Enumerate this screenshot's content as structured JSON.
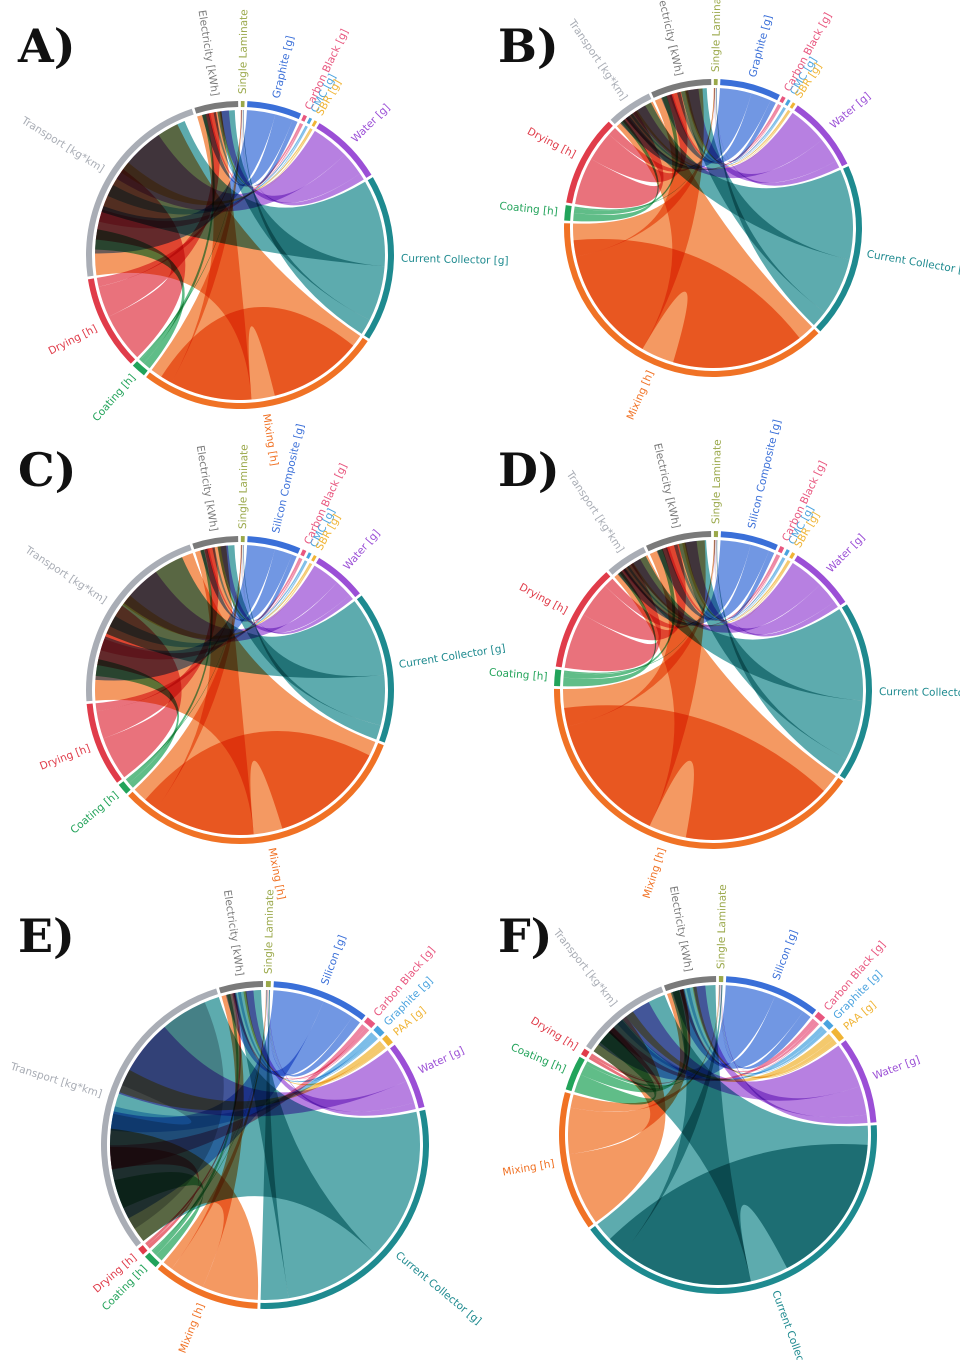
{
  "figure": {
    "panels": [
      {
        "letter": "A)",
        "segments": [
          {
            "label": "Single Laminate",
            "color": "#9aa84a",
            "span": 1.0
          },
          {
            "label": "Graphite [g]",
            "color": "#3a6fd8",
            "span": 15
          },
          {
            "label": "Carbon Black [g]",
            "color": "#e8577f",
            "span": 1.0
          },
          {
            "label": "CMC [g]",
            "color": "#4aa3df",
            "span": 0.8
          },
          {
            "label": "SBR [g]",
            "color": "#f0b435",
            "span": 0.8
          },
          {
            "label": "Water [g]",
            "color": "#9b4fd6",
            "span": 20
          },
          {
            "label": "Current Collector [g]",
            "color": "#1e8a8f",
            "span": 46
          },
          {
            "label": "Mixing [h]",
            "color": "#f07225",
            "span": 68
          },
          {
            "label": "Coating [h]",
            "color": "#22a35a",
            "span": 4
          },
          {
            "label": "Drying [h]",
            "color": "#e03c4a",
            "span": 26
          },
          {
            "label": "Transport [kg*km]",
            "color": "#a9adb5",
            "span": 58
          },
          {
            "label": "Electricity [kWh]",
            "color": "#7a7a7a",
            "span": 12
          }
        ]
      },
      {
        "letter": "B)",
        "segments": [
          {
            "label": "Single Laminate",
            "color": "#9aa84a",
            "span": 1.0
          },
          {
            "label": "Graphite [g]",
            "color": "#3a6fd8",
            "span": 16
          },
          {
            "label": "Carbon Black [g]",
            "color": "#e8577f",
            "span": 1.0
          },
          {
            "label": "CMC [g]",
            "color": "#4aa3df",
            "span": 0.8
          },
          {
            "label": "SBR [g]",
            "color": "#f0b435",
            "span": 0.8
          },
          {
            "label": "Water [g]",
            "color": "#9b4fd6",
            "span": 20
          },
          {
            "label": "Current Collector [g]",
            "color": "#1e8a8f",
            "span": 46
          },
          {
            "label": "Mixing [h]",
            "color": "#f07225",
            "span": 92
          },
          {
            "label": "Coating [h]",
            "color": "#22a35a",
            "span": 4
          },
          {
            "label": "Drying [h]",
            "color": "#e03c4a",
            "span": 24
          },
          {
            "label": "Transport [kg*km]",
            "color": "#a9adb5",
            "span": 12
          },
          {
            "label": "Electricity [kWh]",
            "color": "#7a7a7a",
            "span": 16
          }
        ]
      },
      {
        "letter": "C)",
        "segments": [
          {
            "label": "Single Laminate",
            "color": "#9aa84a",
            "span": 1.0
          },
          {
            "label": "Silicon Composite [g]",
            "color": "#3a6fd8",
            "span": 14
          },
          {
            "label": "Carbon Black [g]",
            "color": "#e8577f",
            "span": 1.0
          },
          {
            "label": "CMC [g]",
            "color": "#4aa3df",
            "span": 0.8
          },
          {
            "label": "SBR [g]",
            "color": "#f0b435",
            "span": 0.8
          },
          {
            "label": "Water [g]",
            "color": "#9b4fd6",
            "span": 14
          },
          {
            "label": "Current Collector [g]",
            "color": "#1e8a8f",
            "span": 40
          },
          {
            "label": "Mixing [h]",
            "color": "#f07225",
            "span": 80
          },
          {
            "label": "Coating [h]",
            "color": "#22a35a",
            "span": 3
          },
          {
            "label": "Drying [h]",
            "color": "#e03c4a",
            "span": 22
          },
          {
            "label": "Transport [kg*km]",
            "color": "#a9adb5",
            "span": 52
          },
          {
            "label": "Electricity [kWh]",
            "color": "#7a7a7a",
            "span": 12
          }
        ]
      },
      {
        "letter": "D)",
        "segments": [
          {
            "label": "Single Laminate",
            "color": "#9aa84a",
            "span": 1.0
          },
          {
            "label": "Silicon Composite [g]",
            "color": "#3a6fd8",
            "span": 14
          },
          {
            "label": "Carbon Black [g]",
            "color": "#e8577f",
            "span": 1.0
          },
          {
            "label": "CMC [g]",
            "color": "#4aa3df",
            "span": 0.8
          },
          {
            "label": "SBR [g]",
            "color": "#f0b435",
            "span": 0.8
          },
          {
            "label": "Water [g]",
            "color": "#9b4fd6",
            "span": 16
          },
          {
            "label": "Current Collector [g]",
            "color": "#1e8a8f",
            "span": 44
          },
          {
            "label": "Mixing [h]",
            "color": "#f07225",
            "span": 96
          },
          {
            "label": "Coating [h]",
            "color": "#22a35a",
            "span": 4
          },
          {
            "label": "Drying [h]",
            "color": "#e03c4a",
            "span": 26
          },
          {
            "label": "Transport [kg*km]",
            "color": "#a9adb5",
            "span": 10
          },
          {
            "label": "Electricity [kWh]",
            "color": "#7a7a7a",
            "span": 16
          }
        ]
      },
      {
        "letter": "E)",
        "segments": [
          {
            "label": "Single Laminate",
            "color": "#9aa84a",
            "span": 1.0
          },
          {
            "label": "Silicon [g]",
            "color": "#3a6fd8",
            "span": 20
          },
          {
            "label": "Carbon Black [g]",
            "color": "#e8577f",
            "span": 2
          },
          {
            "label": "Graphite [g]",
            "color": "#4aa3df",
            "span": 2
          },
          {
            "label": "PAA [g]",
            "color": "#f0b435",
            "span": 2
          },
          {
            "label": "Water [g]",
            "color": "#9b4fd6",
            "span": 14
          },
          {
            "label": "Current Collector [g]",
            "color": "#1e8a8f",
            "span": 60
          },
          {
            "label": "Mixing [h]",
            "color": "#f07225",
            "span": 22
          },
          {
            "label": "Coating [h]",
            "color": "#22a35a",
            "span": 3
          },
          {
            "label": "Drying [h]",
            "color": "#e03c4a",
            "span": 1.5
          },
          {
            "label": "Transport [kg*km]",
            "color": "#a9adb5",
            "span": 64
          },
          {
            "label": "Electricity [kWh]",
            "color": "#7a7a7a",
            "span": 9
          }
        ]
      },
      {
        "letter": "F)",
        "segments": [
          {
            "label": "Single Laminate",
            "color": "#9aa84a",
            "span": 1.0
          },
          {
            "label": "Silicon [g]",
            "color": "#3a6fd8",
            "span": 22
          },
          {
            "label": "Carbon Black [g]",
            "color": "#e8577f",
            "span": 2
          },
          {
            "label": "Graphite [g]",
            "color": "#4aa3df",
            "span": 2
          },
          {
            "label": "PAA [g]",
            "color": "#f0b435",
            "span": 3
          },
          {
            "label": "Water [g]",
            "color": "#9b4fd6",
            "span": 20
          },
          {
            "label": "Current Collector [g]",
            "color": "#1e8a8f",
            "span": 92
          },
          {
            "label": "Mixing [h]",
            "color": "#f07225",
            "span": 32
          },
          {
            "label": "Coating [h]",
            "color": "#22a35a",
            "span": 8
          },
          {
            "label": "Drying [h]",
            "color": "#e03c4a",
            "span": 1.5
          },
          {
            "label": "Transport [kg*km]",
            "color": "#a9adb5",
            "span": 22
          },
          {
            "label": "Electricity [kWh]",
            "color": "#7a7a7a",
            "span": 12
          }
        ]
      }
    ]
  }
}
